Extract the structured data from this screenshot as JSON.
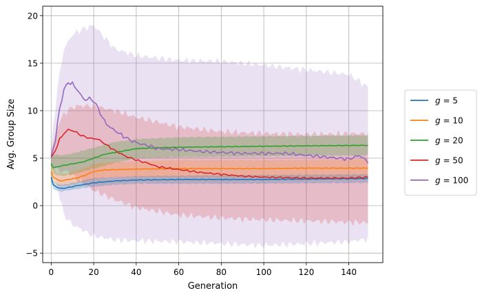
{
  "chart_data": {
    "type": "line",
    "title": "",
    "xlabel": "Generation",
    "ylabel": "Avg. Group Size",
    "xlim": [
      -4,
      156
    ],
    "ylim": [
      -6,
      21
    ],
    "x_ticks": [
      0,
      20,
      40,
      60,
      80,
      100,
      120,
      140
    ],
    "y_ticks": [
      -5,
      0,
      5,
      10,
      15,
      20
    ],
    "grid": true,
    "legend_position": "right, outside plot",
    "series": [
      {
        "name": "g = 5",
        "legend_g": "g",
        "legend_eq": "= 5",
        "color": "#1f77b4",
        "band_opacity": 0.25,
        "mean_keypoints": [
          [
            0,
            3.0
          ],
          [
            1,
            2.2
          ],
          [
            3,
            1.9
          ],
          [
            5,
            1.8
          ],
          [
            8,
            1.9
          ],
          [
            12,
            2.1
          ],
          [
            20,
            2.4
          ],
          [
            30,
            2.6
          ],
          [
            40,
            2.7
          ],
          [
            60,
            2.75
          ],
          [
            80,
            2.75
          ],
          [
            100,
            2.75
          ],
          [
            120,
            2.8
          ],
          [
            149,
            2.85
          ]
        ],
        "lower_keypoints": [
          [
            0,
            2.4
          ],
          [
            1,
            1.8
          ],
          [
            3,
            1.5
          ],
          [
            5,
            1.5
          ],
          [
            8,
            1.6
          ],
          [
            12,
            1.75
          ],
          [
            20,
            2.0
          ],
          [
            30,
            2.2
          ],
          [
            40,
            2.3
          ],
          [
            80,
            2.3
          ],
          [
            120,
            2.35
          ],
          [
            149,
            2.4
          ]
        ],
        "upper_keypoints": [
          [
            0,
            3.6
          ],
          [
            1,
            2.6
          ],
          [
            3,
            2.3
          ],
          [
            5,
            2.2
          ],
          [
            8,
            2.3
          ],
          [
            12,
            2.5
          ],
          [
            20,
            2.9
          ],
          [
            30,
            3.0
          ],
          [
            40,
            3.1
          ],
          [
            80,
            3.2
          ],
          [
            120,
            3.25
          ],
          [
            149,
            3.3
          ]
        ]
      },
      {
        "name": "g = 10",
        "legend_g": "g",
        "legend_eq": "= 10",
        "color": "#ff7f0e",
        "band_opacity": 0.25,
        "mean_keypoints": [
          [
            0,
            3.6
          ],
          [
            1,
            3.0
          ],
          [
            3,
            2.7
          ],
          [
            5,
            2.6
          ],
          [
            8,
            2.75
          ],
          [
            12,
            2.9
          ],
          [
            16,
            3.2
          ],
          [
            20,
            3.6
          ],
          [
            25,
            3.75
          ],
          [
            30,
            3.8
          ],
          [
            40,
            3.85
          ],
          [
            60,
            3.9
          ],
          [
            80,
            3.9
          ],
          [
            100,
            3.9
          ],
          [
            120,
            3.95
          ],
          [
            149,
            3.95
          ]
        ],
        "lower_keypoints": [
          [
            0,
            2.8
          ],
          [
            3,
            2.1
          ],
          [
            8,
            2.1
          ],
          [
            16,
            2.5
          ],
          [
            20,
            2.8
          ],
          [
            30,
            3.0
          ],
          [
            60,
            3.0
          ],
          [
            100,
            3.0
          ],
          [
            149,
            3.0
          ]
        ],
        "upper_keypoints": [
          [
            0,
            4.4
          ],
          [
            3,
            3.4
          ],
          [
            8,
            3.4
          ],
          [
            16,
            4.0
          ],
          [
            20,
            4.4
          ],
          [
            30,
            4.6
          ],
          [
            60,
            4.8
          ],
          [
            100,
            4.8
          ],
          [
            149,
            4.9
          ]
        ]
      },
      {
        "name": "g = 20",
        "legend_g": "g",
        "legend_eq": "= 20",
        "color": "#2ca02c",
        "band_opacity": 0.25,
        "mean_keypoints": [
          [
            0,
            4.4
          ],
          [
            1,
            4.0
          ],
          [
            5,
            4.2
          ],
          [
            10,
            4.4
          ],
          [
            15,
            4.6
          ],
          [
            20,
            5.0
          ],
          [
            25,
            5.4
          ],
          [
            30,
            5.6
          ],
          [
            35,
            5.8
          ],
          [
            40,
            6.0
          ],
          [
            50,
            6.1
          ],
          [
            60,
            6.15
          ],
          [
            80,
            6.2
          ],
          [
            100,
            6.25
          ],
          [
            120,
            6.3
          ],
          [
            149,
            6.35
          ]
        ],
        "lower_keypoints": [
          [
            0,
            3.4
          ],
          [
            5,
            3.1
          ],
          [
            10,
            3.3
          ],
          [
            20,
            3.9
          ],
          [
            30,
            4.5
          ],
          [
            40,
            5.0
          ],
          [
            60,
            5.1
          ],
          [
            100,
            5.2
          ],
          [
            149,
            5.3
          ]
        ],
        "upper_keypoints": [
          [
            0,
            5.4
          ],
          [
            5,
            5.3
          ],
          [
            10,
            5.5
          ],
          [
            20,
            6.1
          ],
          [
            30,
            6.7
          ],
          [
            40,
            7.0
          ],
          [
            60,
            7.2
          ],
          [
            100,
            7.3
          ],
          [
            149,
            7.4
          ]
        ]
      },
      {
        "name": "g = 50",
        "legend_g": "g",
        "legend_eq": "= 50",
        "color": "#d62728",
        "band_opacity": 0.2,
        "mean_keypoints": [
          [
            0,
            5.1
          ],
          [
            2,
            5.8
          ],
          [
            4,
            7.0
          ],
          [
            6,
            7.6
          ],
          [
            8,
            8.0
          ],
          [
            10,
            7.9
          ],
          [
            12,
            7.7
          ],
          [
            14,
            7.4
          ],
          [
            18,
            7.1
          ],
          [
            22,
            7.0
          ],
          [
            26,
            6.4
          ],
          [
            30,
            5.8
          ],
          [
            35,
            5.2
          ],
          [
            40,
            4.8
          ],
          [
            45,
            4.5
          ],
          [
            50,
            4.1
          ],
          [
            60,
            3.8
          ],
          [
            70,
            3.5
          ],
          [
            80,
            3.3
          ],
          [
            90,
            3.1
          ],
          [
            100,
            3.0
          ],
          [
            110,
            2.95
          ],
          [
            120,
            2.9
          ],
          [
            130,
            2.9
          ],
          [
            140,
            2.9
          ],
          [
            149,
            3.0
          ]
        ],
        "lower_keypoints": [
          [
            0,
            4.3
          ],
          [
            4,
            3.6
          ],
          [
            8,
            3.6
          ],
          [
            12,
            2.8
          ],
          [
            20,
            1.6
          ],
          [
            30,
            0.6
          ],
          [
            40,
            -0.2
          ],
          [
            60,
            -1.0
          ],
          [
            80,
            -1.3
          ],
          [
            100,
            -1.5
          ],
          [
            120,
            -1.6
          ],
          [
            149,
            -1.8
          ]
        ],
        "upper_keypoints": [
          [
            0,
            5.9
          ],
          [
            4,
            9.0
          ],
          [
            8,
            10.1
          ],
          [
            12,
            10.5
          ],
          [
            20,
            10.5
          ],
          [
            30,
            10.0
          ],
          [
            40,
            9.3
          ],
          [
            60,
            8.3
          ],
          [
            80,
            7.8
          ],
          [
            100,
            7.6
          ],
          [
            120,
            7.5
          ],
          [
            149,
            7.6
          ]
        ]
      },
      {
        "name": "g = 100",
        "legend_g": "g",
        "legend_eq": "= 100",
        "color": "#9467bd",
        "band_opacity": 0.2,
        "mean_keypoints": [
          [
            0,
            5.2
          ],
          [
            2,
            6.8
          ],
          [
            3,
            8.8
          ],
          [
            4,
            10.2
          ],
          [
            6,
            12.2
          ],
          [
            8,
            13.0
          ],
          [
            10,
            12.8
          ],
          [
            12,
            12.3
          ],
          [
            14,
            11.6
          ],
          [
            16,
            11.1
          ],
          [
            18,
            11.3
          ],
          [
            20,
            11.0
          ],
          [
            22,
            10.3
          ],
          [
            24,
            9.3
          ],
          [
            26,
            8.6
          ],
          [
            28,
            8.2
          ],
          [
            30,
            7.9
          ],
          [
            34,
            7.3
          ],
          [
            38,
            6.8
          ],
          [
            42,
            6.5
          ],
          [
            46,
            6.3
          ],
          [
            50,
            6.0
          ],
          [
            60,
            5.9
          ],
          [
            70,
            5.7
          ],
          [
            80,
            5.6
          ],
          [
            90,
            5.5
          ],
          [
            100,
            5.5
          ],
          [
            110,
            5.5
          ],
          [
            120,
            5.3
          ],
          [
            130,
            5.1
          ],
          [
            140,
            4.9
          ],
          [
            145,
            5.3
          ],
          [
            149,
            4.6
          ]
        ],
        "lower_keypoints": [
          [
            0,
            4.3
          ],
          [
            3,
            2.0
          ],
          [
            6,
            -1.0
          ],
          [
            10,
            -2.0
          ],
          [
            20,
            -3.2
          ],
          [
            30,
            -3.6
          ],
          [
            40,
            -3.7
          ],
          [
            60,
            -3.8
          ],
          [
            80,
            -4.0
          ],
          [
            100,
            -4.2
          ],
          [
            120,
            -4.0
          ],
          [
            140,
            -3.8
          ],
          [
            149,
            -3.5
          ]
        ],
        "upper_keypoints": [
          [
            0,
            6.1
          ],
          [
            3,
            12.5
          ],
          [
            6,
            16.5
          ],
          [
            10,
            18.0
          ],
          [
            14,
            18.5
          ],
          [
            20,
            19.0
          ],
          [
            30,
            16.5
          ],
          [
            40,
            15.8
          ],
          [
            60,
            15.3
          ],
          [
            80,
            15.2
          ],
          [
            100,
            14.8
          ],
          [
            120,
            14.3
          ],
          [
            140,
            13.8
          ],
          [
            149,
            12.5
          ]
        ]
      }
    ]
  }
}
